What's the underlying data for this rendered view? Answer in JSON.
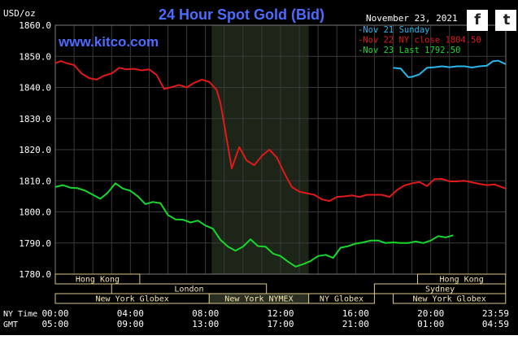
{
  "chart_data": {
    "type": "line",
    "title": "24 Hour Spot Gold (Bid)",
    "source_label": "www.kitco.com",
    "unit_label": "USD/oz",
    "date_label": "November 23, 2021",
    "ylim": [
      1780.0,
      1860.0
    ],
    "yticks": [
      "1780.0",
      "1790.0",
      "1800.0",
      "1810.0",
      "1820.0",
      "1830.0",
      "1840.0",
      "1850.0",
      "1860.0"
    ],
    "x_axis_rows": [
      {
        "label": "NY Time",
        "ticks": [
          "00:00",
          "04:00",
          "08:00",
          "12:00",
          "16:00",
          "20:00",
          "23:59"
        ]
      },
      {
        "label": "GMT",
        "ticks": [
          "05:00",
          "09:00",
          "13:00",
          "17:00",
          "21:00",
          "01:00",
          "04:59"
        ]
      }
    ],
    "colors": {
      "background": "#000000",
      "grid": "#3a3a3a",
      "axis_text": "#ffffff",
      "title": "#4d6bff",
      "nymex_band": "#1d2418"
    },
    "legend": [
      {
        "label": "Nov 21 Sunday",
        "color": "#29b6e8"
      },
      {
        "label": "Nov 22 NY close 1804.50",
        "color": "#e01919"
      },
      {
        "label": "Nov 23 Last 1792.50",
        "color": "#18d82e"
      }
    ],
    "series": [
      {
        "name": "Nov 21 Sunday",
        "color": "#29b6e8",
        "x": [
          18.0,
          18.4,
          18.8,
          19.0,
          19.4,
          19.8,
          20.2,
          20.6,
          21.0,
          21.4,
          21.8,
          22.2,
          22.6,
          23.0,
          23.3,
          23.6,
          23.99
        ],
        "y": [
          1846.3,
          1846.1,
          1843.3,
          1843.4,
          1844.2,
          1846.3,
          1846.5,
          1846.8,
          1846.5,
          1846.8,
          1846.8,
          1846.4,
          1846.8,
          1847.0,
          1848.4,
          1848.6,
          1847.5
        ]
      },
      {
        "name": "Nov 22 NY close 1804.50",
        "color": "#e01919",
        "x": [
          0.0,
          0.3,
          0.6,
          1.0,
          1.4,
          1.8,
          2.2,
          2.6,
          3.0,
          3.4,
          3.8,
          4.2,
          4.6,
          5.0,
          5.4,
          5.8,
          6.2,
          6.6,
          7.0,
          7.4,
          7.8,
          8.2,
          8.4,
          8.6,
          8.8,
          9.0,
          9.2,
          9.4,
          9.8,
          10.2,
          10.6,
          11.0,
          11.4,
          11.8,
          12.2,
          12.6,
          13.0,
          13.4,
          13.8,
          14.2,
          14.6,
          15.0,
          15.4,
          15.8,
          16.2,
          16.6,
          17.0,
          17.4,
          17.8,
          18.2,
          18.6,
          19.0,
          19.4,
          19.8,
          20.2,
          20.6,
          21.0,
          21.4,
          21.8,
          22.2,
          22.6,
          23.0,
          23.4,
          23.99
        ],
        "y": [
          1847.8,
          1848.5,
          1847.8,
          1847.2,
          1844.5,
          1843.0,
          1842.5,
          1843.8,
          1844.5,
          1846.3,
          1845.8,
          1846.0,
          1845.5,
          1845.8,
          1844.0,
          1839.5,
          1840.1,
          1840.8,
          1840.0,
          1841.5,
          1842.5,
          1841.8,
          1840.5,
          1839.2,
          1835.0,
          1828.0,
          1821.0,
          1814.0,
          1820.8,
          1816.5,
          1815.0,
          1818.0,
          1820.0,
          1817.5,
          1812.5,
          1808.0,
          1806.5,
          1806.0,
          1805.5,
          1804.0,
          1803.5,
          1804.8,
          1805.0,
          1805.3,
          1804.8,
          1805.5,
          1805.5,
          1805.5,
          1804.8,
          1807.0,
          1808.5,
          1809.2,
          1809.6,
          1808.3,
          1810.5,
          1810.6,
          1809.8,
          1809.8,
          1810.0,
          1809.5,
          1809.0,
          1808.6,
          1808.8,
          1807.5
        ]
      },
      {
        "name": "Nov 23 Last 1792.50",
        "color": "#18d82e",
        "x": [
          0.0,
          0.4,
          0.8,
          1.2,
          1.6,
          2.0,
          2.4,
          2.8,
          3.2,
          3.6,
          4.0,
          4.4,
          4.8,
          5.2,
          5.6,
          6.0,
          6.4,
          6.8,
          7.2,
          7.6,
          8.0,
          8.4,
          8.8,
          9.2,
          9.6,
          10.0,
          10.4,
          10.8,
          11.2,
          11.6,
          12.0,
          12.4,
          12.8,
          13.2,
          13.6,
          14.0,
          14.4,
          14.8,
          15.2,
          15.6,
          16.0,
          16.4,
          16.8,
          17.2,
          17.6,
          18.0,
          18.4,
          18.8,
          19.2,
          19.6,
          20.0,
          20.4,
          20.8,
          21.2
        ],
        "y": [
          1808.0,
          1808.6,
          1807.8,
          1807.6,
          1806.8,
          1805.5,
          1804.2,
          1806.2,
          1809.2,
          1807.5,
          1806.8,
          1805.0,
          1802.5,
          1803.2,
          1802.8,
          1799.0,
          1797.6,
          1797.5,
          1796.6,
          1797.2,
          1795.6,
          1794.6,
          1791.0,
          1788.8,
          1787.5,
          1788.8,
          1791.2,
          1789.0,
          1788.8,
          1786.6,
          1785.8,
          1784.0,
          1782.4,
          1783.2,
          1784.2,
          1785.8,
          1786.2,
          1785.2,
          1788.5,
          1789.0,
          1789.8,
          1790.2,
          1790.8,
          1790.8,
          1790.0,
          1790.2,
          1790.0,
          1790.0,
          1790.5,
          1790.0,
          1790.8,
          1792.2,
          1791.8,
          1792.5
        ]
      }
    ],
    "nymex_band_hours": [
      8.33,
      13.5
    ],
    "market_rows": [
      [
        {
          "label": "Hong Kong",
          "start": 0.0,
          "end": 4.5
        },
        {
          "label": "Hong Kong",
          "start": 19.3,
          "end": 23.99
        }
      ],
      [
        {
          "label": "London",
          "start": 3.0,
          "end": 11.25
        },
        {
          "label": "Sydney",
          "start": 17.0,
          "end": 23.99
        }
      ],
      [
        {
          "label": "New York Globex",
          "start": 0.0,
          "end": 8.2
        },
        {
          "label": "New York NYMEX",
          "start": 8.2,
          "end": 13.5
        },
        {
          "label": "NY Globex",
          "start": 13.5,
          "end": 17.0
        },
        {
          "label": "New York Globex",
          "start": 18.0,
          "end": 23.99
        }
      ]
    ]
  },
  "social": {
    "facebook_glyph": "f",
    "twitter_glyph": "t"
  }
}
